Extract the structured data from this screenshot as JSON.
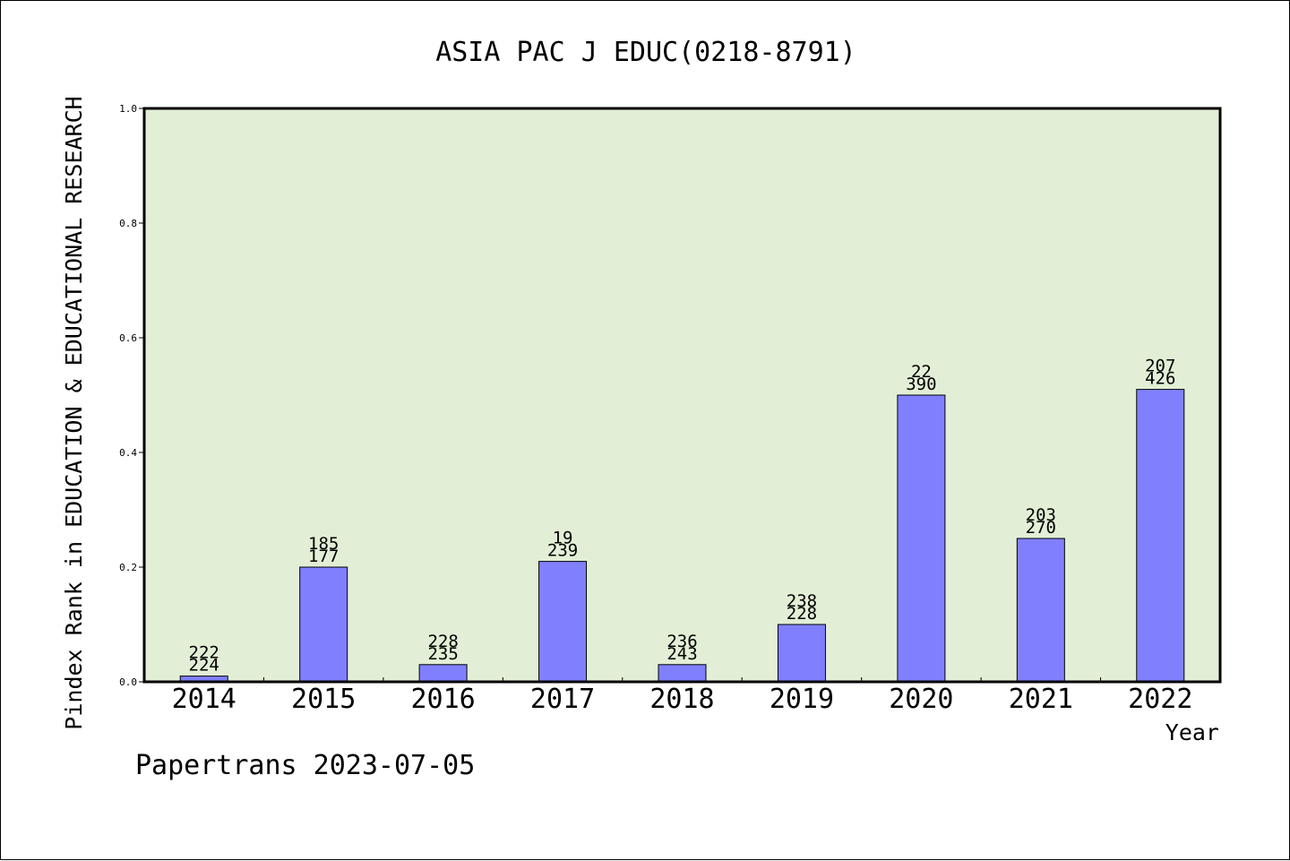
{
  "chart_data": {
    "type": "bar",
    "title": "ASIA PAC J EDUC(0218-8791)",
    "xlabel": "Year",
    "ylabel": "Pindex Rank in EDUCATION & EDUCATIONAL RESEARCH",
    "footer": "Papertrans 2023-07-05",
    "categories": [
      "2014",
      "2015",
      "2016",
      "2017",
      "2018",
      "2019",
      "2020",
      "2021",
      "2022"
    ],
    "values": [
      0.01,
      0.2,
      0.03,
      0.21,
      0.03,
      0.1,
      0.5,
      0.25,
      0.51
    ],
    "labels_top": [
      "222",
      "185",
      "228",
      "19",
      "236",
      "238",
      "22",
      "203",
      "207"
    ],
    "labels_bottom": [
      "224",
      "177",
      "235",
      "239",
      "243",
      "228",
      "390",
      "270",
      "426"
    ],
    "ylim": [
      0,
      1.0
    ],
    "yticks": [
      "0.0",
      "0.2",
      "0.4",
      "0.6",
      "0.8",
      "1.0"
    ],
    "grid": false,
    "colors": {
      "plot_background": "#e2efd6",
      "bar_fill": "#8080ff",
      "bar_stroke": "#000000",
      "axis": "#000000"
    }
  }
}
